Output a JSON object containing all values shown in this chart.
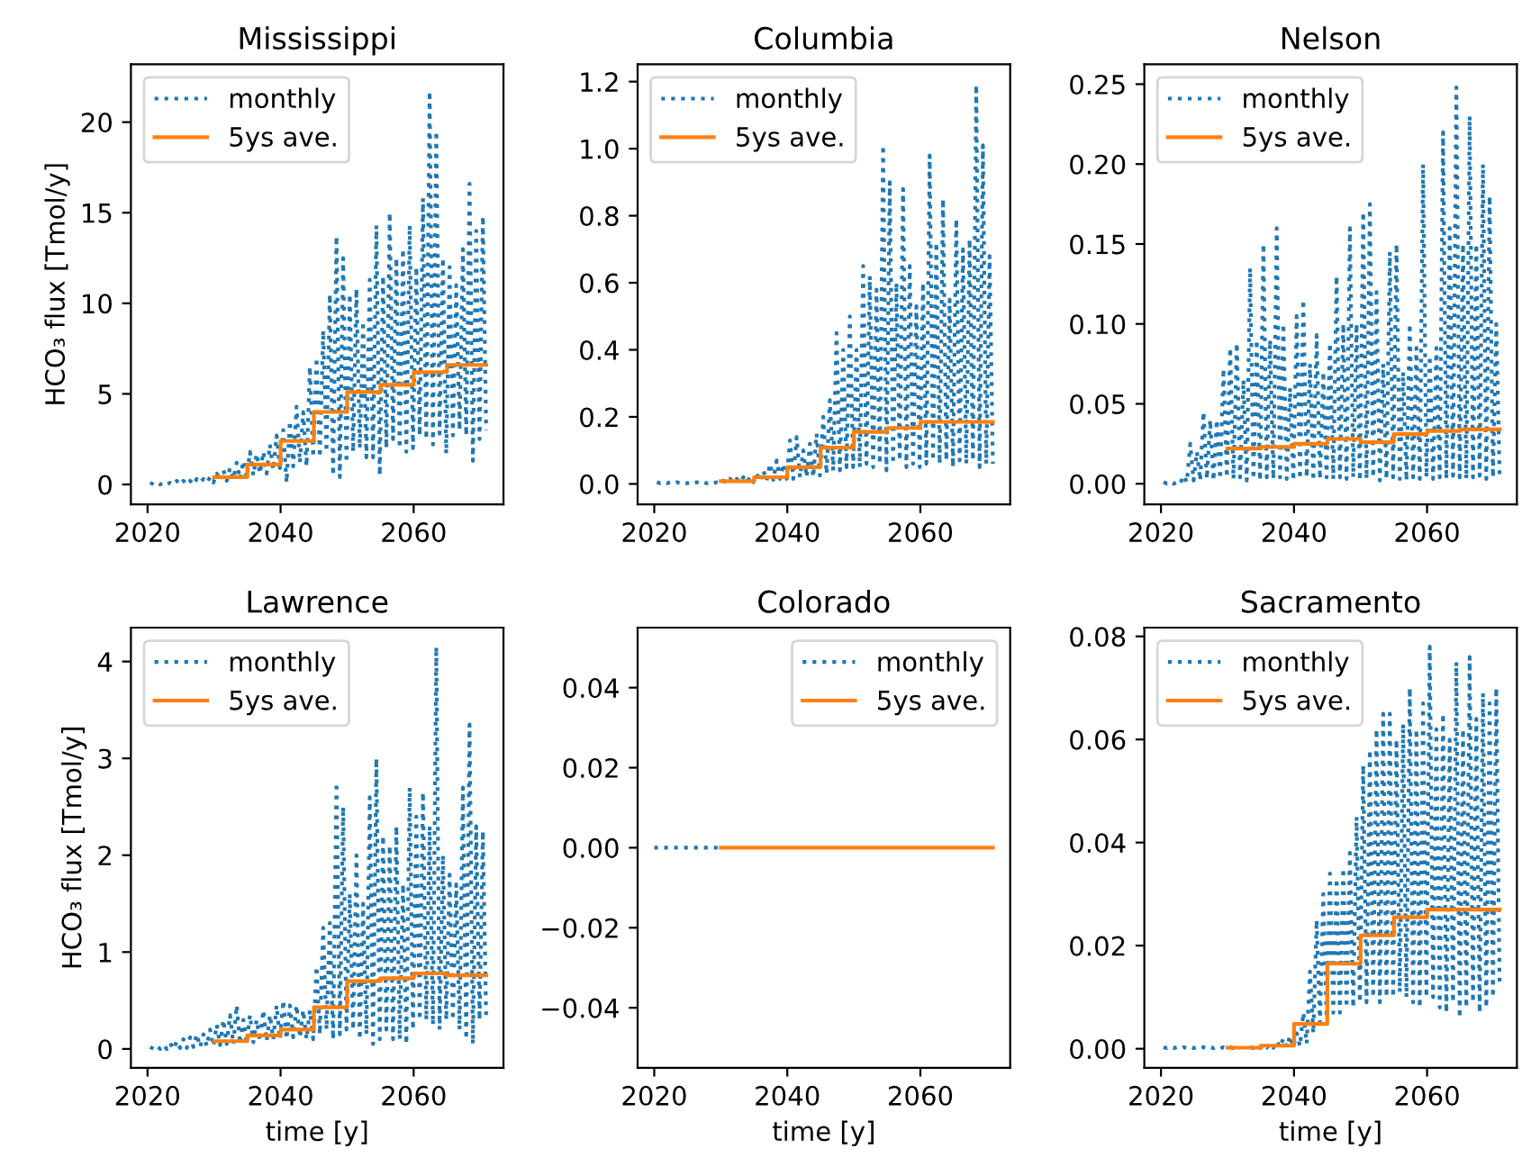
{
  "chart_data": [
    {
      "type": "line",
      "title": "Mississippi",
      "ylabel": "HCO₃ flux [Tmol/y]",
      "xlim": [
        2017.5,
        2073.5
      ],
      "xticks": [
        2020,
        2040,
        2060
      ],
      "ylim": [
        -1.1,
        23.2
      ],
      "yticks": [
        0,
        5,
        10,
        15,
        20
      ],
      "legend": "top left",
      "grid": false,
      "series": [
        {
          "name": "monthly",
          "color": "#1f77b4",
          "line_style": "dotted",
          "x": [
            2020.4,
            2020.9,
            2021.4,
            2021.9,
            2022.4,
            2022.9,
            2023.4,
            2023.9,
            2024.4,
            2024.9,
            2025.4,
            2025.9,
            2026.4,
            2026.9,
            2027.4,
            2027.9,
            2028.4,
            2028.9,
            2029.4,
            2029.9,
            2030.4,
            2030.9,
            2031.4,
            2031.9,
            2032.4,
            2032.9,
            2033.4,
            2033.9,
            2034.4,
            2034.9,
            2035.4,
            2035.9,
            2036.4,
            2036.9,
            2037.4,
            2037.9,
            2038.4,
            2038.9,
            2039.4,
            2039.9,
            2040.4,
            2040.9,
            2041.4,
            2041.9,
            2042.4,
            2042.9,
            2043.4,
            2043.9,
            2044.4,
            2044.9,
            2045.4,
            2045.9,
            2046.4,
            2046.9,
            2047.4,
            2047.9,
            2048.4,
            2048.9,
            2049.4,
            2049.9,
            2050.4,
            2050.9,
            2051.4,
            2051.9,
            2052.4,
            2052.9,
            2053.4,
            2053.9,
            2054.4,
            2054.9,
            2055.4,
            2055.9,
            2056.4,
            2056.9,
            2057.4,
            2057.9,
            2058.4,
            2058.9,
            2059.4,
            2059.9,
            2060.4,
            2060.9,
            2061.4,
            2061.9,
            2062.4,
            2062.9,
            2063.4,
            2063.9,
            2064.4,
            2064.9,
            2065.4,
            2065.9,
            2066.4,
            2066.9,
            2067.4,
            2067.9,
            2068.4,
            2068.9,
            2069.4,
            2069.9,
            2070.4,
            2070.9
          ],
          "values": [
            0.1,
            0,
            0.1,
            0,
            0.1,
            0,
            0.1,
            0,
            0.2,
            0,
            0.2,
            0,
            0.2,
            0,
            0.3,
            0.1,
            0.3,
            0.1,
            0.4,
            0.1,
            0.6,
            0.2,
            0.8,
            0.2,
            0.9,
            0.3,
            1.2,
            0.3,
            1.3,
            0.4,
            1.8,
            0.5,
            1.7,
            0.6,
            1.8,
            0.6,
            2.2,
            0.8,
            2.7,
            0.9,
            3.0,
            0.1,
            3.5,
            1.0,
            4.3,
            1.2,
            4.0,
            1.0,
            6.5,
            1.5,
            7.0,
            1.5,
            8.5,
            1.8,
            10.5,
            0.5,
            13.7,
            0.4,
            12.5,
            1.2,
            10.5,
            1.8,
            10.8,
            2.0,
            9.0,
            1.5,
            11.3,
            1.5,
            14.3,
            0.5,
            11.5,
            2.0,
            15.0,
            2.5,
            12.5,
            2.0,
            13.0,
            1.8,
            14.3,
            2.0,
            12.0,
            2.7,
            15.8,
            2.5,
            21.7,
            2.2,
            19.5,
            2.8,
            12.5,
            1.7,
            12.0,
            2.7,
            11.0,
            3.0,
            13.0,
            2.7,
            16.6,
            1.3,
            14.0,
            2.5,
            14.8,
            3.0
          ]
        },
        {
          "name": "5ys ave.",
          "type": "step",
          "color": "#ff7f0e",
          "line_style": "solid",
          "x": [
            2030,
            2035,
            2040,
            2045,
            2050,
            2055,
            2060,
            2065,
            2070.9
          ],
          "values": [
            0.4,
            1.1,
            2.4,
            4.0,
            5.1,
            5.5,
            6.2,
            6.6,
            6.6
          ]
        }
      ]
    },
    {
      "type": "line",
      "title": "Columbia",
      "xlim": [
        2017.5,
        2073.5
      ],
      "xticks": [
        2020,
        2040,
        2060
      ],
      "ylim": [
        -0.061,
        1.252
      ],
      "yticks": [
        {
          "value": 0,
          "label": "0.0"
        },
        0.2,
        0.4,
        0.6,
        0.8,
        {
          "value": 1,
          "label": "1.0"
        },
        1.2
      ],
      "legend": "top left",
      "grid": false,
      "series": [
        {
          "name": "monthly",
          "color": "#1f77b4",
          "line_style": "dotted",
          "x": [
            2020.4,
            2020.9,
            2021.4,
            2021.9,
            2022.4,
            2022.9,
            2023.4,
            2023.9,
            2024.4,
            2024.9,
            2025.4,
            2025.9,
            2026.4,
            2026.9,
            2027.4,
            2027.9,
            2028.4,
            2028.9,
            2029.4,
            2029.9,
            2030.4,
            2030.9,
            2031.4,
            2031.9,
            2032.4,
            2032.9,
            2033.4,
            2033.9,
            2034.4,
            2034.9,
            2035.4,
            2035.9,
            2036.4,
            2036.9,
            2037.4,
            2037.9,
            2038.4,
            2038.9,
            2039.4,
            2039.9,
            2040.4,
            2040.9,
            2041.4,
            2041.9,
            2042.4,
            2042.9,
            2043.4,
            2043.9,
            2044.4,
            2044.9,
            2045.4,
            2045.9,
            2046.4,
            2046.9,
            2047.4,
            2047.9,
            2048.4,
            2048.9,
            2049.4,
            2049.9,
            2050.4,
            2050.9,
            2051.4,
            2051.9,
            2052.4,
            2052.9,
            2053.4,
            2053.9,
            2054.4,
            2054.9,
            2055.4,
            2055.9,
            2056.4,
            2056.9,
            2057.4,
            2057.9,
            2058.4,
            2058.9,
            2059.4,
            2059.9,
            2060.4,
            2060.9,
            2061.4,
            2061.9,
            2062.4,
            2062.9,
            2063.4,
            2063.9,
            2064.4,
            2064.9,
            2065.4,
            2065.9,
            2066.4,
            2066.9,
            2067.4,
            2067.9,
            2068.4,
            2068.9,
            2069.4,
            2069.9,
            2070.4,
            2070.9
          ],
          "values": [
            0.005,
            0.002,
            0.005,
            0.002,
            0.005,
            0.002,
            0.005,
            0.002,
            0.005,
            0.002,
            0.005,
            0.002,
            0.005,
            0.002,
            0.005,
            0.002,
            0.005,
            0.002,
            0.005,
            0.002,
            0.01,
            0.002,
            0.015,
            0.003,
            0.015,
            0.004,
            0.02,
            0.005,
            0.02,
            0.005,
            0.03,
            0.008,
            0.04,
            0.01,
            0.06,
            0.012,
            0.07,
            0.015,
            0.06,
            0.015,
            0.13,
            0.015,
            0.14,
            0.02,
            0.1,
            0.02,
            0.12,
            0.02,
            0.15,
            0.025,
            0.2,
            0.03,
            0.25,
            0.04,
            0.45,
            0.04,
            0.4,
            0.05,
            0.5,
            0.05,
            0.4,
            0.05,
            0.65,
            0.06,
            0.62,
            0.05,
            0.58,
            0.06,
            1.01,
            0.04,
            0.9,
            0.06,
            0.6,
            0.07,
            0.88,
            0.05,
            0.65,
            0.06,
            0.53,
            0.05,
            0.6,
            0.06,
            0.98,
            0.07,
            0.72,
            0.06,
            0.85,
            0.07,
            0.55,
            0.05,
            0.79,
            0.07,
            0.7,
            0.06,
            0.73,
            0.07,
            1.19,
            0.05,
            1.01,
            0.06,
            0.68,
            0.06
          ]
        },
        {
          "name": "5ys ave.",
          "type": "step",
          "color": "#ff7f0e",
          "line_style": "solid",
          "x": [
            2030,
            2035,
            2040,
            2045,
            2050,
            2055,
            2060,
            2065,
            2070.9
          ],
          "values": [
            0.008,
            0.02,
            0.05,
            0.108,
            0.155,
            0.167,
            0.185,
            0.185,
            0.185
          ]
        }
      ]
    },
    {
      "type": "line",
      "title": "Nelson",
      "xlim": [
        2017.5,
        2073.5
      ],
      "xticks": [
        2020,
        2040,
        2060
      ],
      "ylim": [
        -0.0129,
        0.2625
      ],
      "yticks": [
        {
          "value": 0,
          "label": "0.00"
        },
        0.05,
        {
          "value": 0.1,
          "label": "0.10"
        },
        0.15,
        {
          "value": 0.2,
          "label": "0.20"
        },
        0.25
      ],
      "legend": "top left",
      "grid": false,
      "series": [
        {
          "name": "monthly",
          "color": "#1f77b4",
          "line_style": "dotted",
          "x": [
            2020.4,
            2020.9,
            2021.4,
            2021.9,
            2022.4,
            2022.9,
            2023.4,
            2023.9,
            2024.4,
            2024.9,
            2025.4,
            2025.9,
            2026.4,
            2026.9,
            2027.4,
            2027.9,
            2028.4,
            2028.9,
            2029.4,
            2029.9,
            2030.4,
            2030.9,
            2031.4,
            2031.9,
            2032.4,
            2032.9,
            2033.4,
            2033.9,
            2034.4,
            2034.9,
            2035.4,
            2035.9,
            2036.4,
            2036.9,
            2037.4,
            2037.9,
            2038.4,
            2038.9,
            2039.4,
            2039.9,
            2040.4,
            2040.9,
            2041.4,
            2041.9,
            2042.4,
            2042.9,
            2043.4,
            2043.9,
            2044.4,
            2044.9,
            2045.4,
            2045.9,
            2046.4,
            2046.9,
            2047.4,
            2047.9,
            2048.4,
            2048.9,
            2049.4,
            2049.9,
            2050.4,
            2050.9,
            2051.4,
            2051.9,
            2052.4,
            2052.9,
            2053.4,
            2053.9,
            2054.4,
            2054.9,
            2055.4,
            2055.9,
            2056.4,
            2056.9,
            2057.4,
            2057.9,
            2058.4,
            2058.9,
            2059.4,
            2059.9,
            2060.4,
            2060.9,
            2061.4,
            2061.9,
            2062.4,
            2062.9,
            2063.4,
            2063.9,
            2064.4,
            2064.9,
            2065.4,
            2065.9,
            2066.4,
            2066.9,
            2067.4,
            2067.9,
            2068.4,
            2068.9,
            2069.4,
            2069.9,
            2070.4,
            2070.9
          ],
          "values": [
            0.001,
            0.0,
            0.001,
            0.0,
            0.001,
            0.0,
            0.005,
            0.001,
            0.025,
            0.002,
            0.02,
            0.002,
            0.045,
            0.003,
            0.04,
            0.002,
            0.04,
            0.003,
            0.072,
            0.004,
            0.085,
            0.003,
            0.088,
            0.004,
            0.065,
            0.002,
            0.135,
            0.003,
            0.09,
            0.002,
            0.15,
            0.004,
            0.09,
            0.003,
            0.16,
            0.004,
            0.1,
            0.003,
            0.06,
            0.002,
            0.105,
            0.003,
            0.115,
            0.004,
            0.075,
            0.002,
            0.093,
            0.003,
            0.07,
            0.004,
            0.088,
            0.003,
            0.13,
            0.004,
            0.1,
            0.003,
            0.16,
            0.004,
            0.1,
            0.002,
            0.17,
            0.003,
            0.175,
            0.004,
            0.12,
            0.002,
            0.075,
            0.003,
            0.145,
            0.004,
            0.15,
            0.003,
            0.07,
            0.002,
            0.1,
            0.004,
            0.085,
            0.003,
            0.2,
            0.004,
            0.08,
            0.003,
            0.085,
            0.004,
            0.22,
            0.003,
            0.16,
            0.005,
            0.248,
            0.004,
            0.15,
            0.003,
            0.23,
            0.004,
            0.15,
            0.005,
            0.2,
            0.003,
            0.18,
            0.004,
            0.1,
            0.005
          ]
        },
        {
          "name": "5ys ave.",
          "type": "step",
          "color": "#ff7f0e",
          "line_style": "solid",
          "x": [
            2030,
            2035,
            2040,
            2045,
            2050,
            2055,
            2060,
            2065,
            2070.9
          ],
          "values": [
            0.022,
            0.023,
            0.025,
            0.028,
            0.026,
            0.031,
            0.033,
            0.034,
            0.034
          ]
        }
      ]
    },
    {
      "type": "line",
      "title": "Lawrence",
      "xlabel": "time [y]",
      "ylabel": "HCO₃ flux [Tmol/y]",
      "xlim": [
        2017.5,
        2073.5
      ],
      "xticks": [
        2020,
        2040,
        2060
      ],
      "ylim": [
        -0.195,
        4.35
      ],
      "yticks": [
        0,
        1,
        2,
        3,
        4
      ],
      "legend": "top left",
      "grid": false,
      "series": [
        {
          "name": "monthly",
          "color": "#1f77b4",
          "line_style": "dotted",
          "x": [
            2020.4,
            2020.9,
            2021.4,
            2021.9,
            2022.4,
            2022.9,
            2023.4,
            2023.9,
            2024.4,
            2024.9,
            2025.4,
            2025.9,
            2026.4,
            2026.9,
            2027.4,
            2027.9,
            2028.4,
            2028.9,
            2029.4,
            2029.9,
            2030.4,
            2030.9,
            2031.4,
            2031.9,
            2032.4,
            2032.9,
            2033.4,
            2033.9,
            2034.4,
            2034.9,
            2035.4,
            2035.9,
            2036.4,
            2036.9,
            2037.4,
            2037.9,
            2038.4,
            2038.9,
            2039.4,
            2039.9,
            2040.4,
            2040.9,
            2041.4,
            2041.9,
            2042.4,
            2042.9,
            2043.4,
            2043.9,
            2044.4,
            2044.9,
            2045.4,
            2045.9,
            2046.4,
            2046.9,
            2047.4,
            2047.9,
            2048.4,
            2048.9,
            2049.4,
            2049.9,
            2050.4,
            2050.9,
            2051.4,
            2051.9,
            2052.4,
            2052.9,
            2053.4,
            2053.9,
            2054.4,
            2054.9,
            2055.4,
            2055.9,
            2056.4,
            2056.9,
            2057.4,
            2057.9,
            2058.4,
            2058.9,
            2059.4,
            2059.9,
            2060.4,
            2060.9,
            2061.4,
            2061.9,
            2062.4,
            2062.9,
            2063.4,
            2063.9,
            2064.4,
            2064.9,
            2065.4,
            2065.9,
            2066.4,
            2066.9,
            2067.4,
            2067.9,
            2068.4,
            2068.9,
            2069.4,
            2069.9,
            2070.4,
            2070.9
          ],
          "values": [
            0.02,
            0,
            0.03,
            0,
            0.04,
            0,
            0.06,
            0,
            0.08,
            0.01,
            0.1,
            0.01,
            0.12,
            0.02,
            0.15,
            0.02,
            0.15,
            0.03,
            0.2,
            0.03,
            0.25,
            0.04,
            0.3,
            0.05,
            0.35,
            0.05,
            0.45,
            0.05,
            0.3,
            0.06,
            0.35,
            0.07,
            0.3,
            0.08,
            0.4,
            0.08,
            0.35,
            0.1,
            0.45,
            0.1,
            0.5,
            0.1,
            0.45,
            0.12,
            0.45,
            0.12,
            0.4,
            0.1,
            0.4,
            0.1,
            0.85,
            0.15,
            1.25,
            0.2,
            1.3,
            0.1,
            2.75,
            0.15,
            2.5,
            0.2,
            1.6,
            0.2,
            2.0,
            0.1,
            1.5,
            0.15,
            2.6,
            0.05,
            3.0,
            0.1,
            2.2,
            0.2,
            2.1,
            0.1,
            2.3,
            0.1,
            1.7,
            0.05,
            2.7,
            0.2,
            2.4,
            0.3,
            2.65,
            0.3,
            2.3,
            0.25,
            4.15,
            0.2,
            2.0,
            0.3,
            1.8,
            0.3,
            1.7,
            0.2,
            2.7,
            0.1,
            3.35,
            0.05,
            2.3,
            0.3,
            2.25,
            0.3
          ]
        },
        {
          "name": "5ys ave.",
          "type": "step",
          "color": "#ff7f0e",
          "line_style": "solid",
          "x": [
            2030,
            2035,
            2040,
            2045,
            2050,
            2055,
            2060,
            2065,
            2070.9
          ],
          "values": [
            0.08,
            0.14,
            0.2,
            0.43,
            0.7,
            0.73,
            0.78,
            0.76,
            0.76
          ]
        }
      ]
    },
    {
      "type": "line",
      "title": "Colorado",
      "xlabel": "time [y]",
      "xlim": [
        2017.5,
        2073.5
      ],
      "xticks": [
        2020,
        2040,
        2060
      ],
      "ylim": [
        -0.055,
        0.055
      ],
      "yticks": [
        {
          "value": -0.04,
          "label": "−0.04"
        },
        {
          "value": -0.02,
          "label": "−0.02"
        },
        {
          "value": 0,
          "label": "0.00"
        },
        0.02,
        0.04
      ],
      "legend": "top right",
      "grid": false,
      "series": [
        {
          "name": "monthly",
          "color": "#1f77b4",
          "line_style": "dotted",
          "x": [
            2020,
            2025,
            2030
          ],
          "values": [
            0,
            0,
            0
          ]
        },
        {
          "name": "5ys ave.",
          "type": "step",
          "color": "#ff7f0e",
          "line_style": "solid",
          "x": [
            2030,
            2035,
            2040,
            2045,
            2050,
            2055,
            2060,
            2065,
            2070.9
          ],
          "values": [
            0,
            0,
            0,
            0,
            0,
            0,
            0,
            0,
            0
          ]
        }
      ]
    },
    {
      "type": "line",
      "title": "Sacramento",
      "xlabel": "time [y]",
      "xlim": [
        2017.5,
        2073.5
      ],
      "xticks": [
        2020,
        2040,
        2060
      ],
      "ylim": [
        -0.0037,
        0.0817
      ],
      "yticks": [
        {
          "value": 0,
          "label": "0.00"
        },
        0.02,
        0.04,
        0.06,
        0.08
      ],
      "legend": "top left",
      "grid": false,
      "series": [
        {
          "name": "monthly",
          "color": "#1f77b4",
          "line_style": "dotted",
          "x": [
            2020.4,
            2020.9,
            2021.4,
            2021.9,
            2022.4,
            2022.9,
            2023.4,
            2023.9,
            2024.4,
            2024.9,
            2025.4,
            2025.9,
            2026.4,
            2026.9,
            2027.4,
            2027.9,
            2028.4,
            2028.9,
            2029.4,
            2029.9,
            2030.4,
            2030.9,
            2031.4,
            2031.9,
            2032.4,
            2032.9,
            2033.4,
            2033.9,
            2034.4,
            2034.9,
            2035.4,
            2035.9,
            2036.4,
            2036.9,
            2037.4,
            2037.9,
            2038.4,
            2038.9,
            2039.4,
            2039.9,
            2040.4,
            2040.9,
            2041.4,
            2041.9,
            2042.4,
            2042.9,
            2043.4,
            2043.9,
            2044.4,
            2044.9,
            2045.4,
            2045.9,
            2046.4,
            2046.9,
            2047.4,
            2047.9,
            2048.4,
            2048.9,
            2049.4,
            2049.9,
            2050.4,
            2050.9,
            2051.4,
            2051.9,
            2052.4,
            2052.9,
            2053.4,
            2053.9,
            2054.4,
            2054.9,
            2055.4,
            2055.9,
            2056.4,
            2056.9,
            2057.4,
            2057.9,
            2058.4,
            2058.9,
            2059.4,
            2059.9,
            2060.4,
            2060.9,
            2061.4,
            2061.9,
            2062.4,
            2062.9,
            2063.4,
            2063.9,
            2064.4,
            2064.9,
            2065.4,
            2065.9,
            2066.4,
            2066.9,
            2067.4,
            2067.9,
            2068.4,
            2068.9,
            2069.4,
            2069.9,
            2070.4,
            2070.9
          ],
          "values": [
            0.0003,
            0.0001,
            0.0003,
            0.0001,
            0.0003,
            0.0001,
            0.0003,
            0.0001,
            0.0003,
            0.0001,
            0.0003,
            0.0001,
            0.0003,
            0.0001,
            0.0003,
            0.0001,
            0.0003,
            0.0001,
            0.0003,
            0.0001,
            0.0003,
            0.0001,
            0.0003,
            0.0001,
            null,
            null,
            0.0003,
            0.0001,
            0.0003,
            0.0001,
            0.0008,
            0.0002,
            0.001,
            0.0002,
            0.0015,
            0.0003,
            0.002,
            0.0003,
            0.0025,
            0.0004,
            0.003,
            0.0005,
            0.007,
            0.001,
            0.015,
            0.003,
            0.025,
            0.005,
            0.03,
            0.006,
            0.034,
            0.007,
            0.033,
            0.007,
            0.035,
            0.008,
            0.038,
            0.008,
            0.045,
            0.009,
            0.055,
            0.009,
            0.058,
            0.01,
            0.062,
            0.009,
            0.065,
            0.01,
            0.065,
            0.01,
            0.06,
            0.011,
            0.063,
            0.01,
            0.07,
            0.009,
            0.062,
            0.008,
            0.067,
            0.01,
            0.078,
            0.01,
            0.062,
            0.008,
            0.065,
            0.007,
            0.06,
            0.009,
            0.075,
            0.006,
            0.062,
            0.008,
            0.076,
            0.009,
            0.064,
            0.007,
            0.069,
            0.008,
            0.067,
            0.01,
            0.07,
            0.012
          ]
        },
        {
          "name": "5ys ave.",
          "type": "step",
          "color": "#ff7f0e",
          "line_style": "solid",
          "x": [
            2030,
            2035,
            2040,
            2045,
            2050,
            2055,
            2060,
            2065,
            2070.9
          ],
          "values": [
            0.0002,
            0.0006,
            0.0048,
            0.0165,
            0.022,
            0.0255,
            0.027,
            0.027,
            0.027
          ]
        }
      ]
    }
  ]
}
